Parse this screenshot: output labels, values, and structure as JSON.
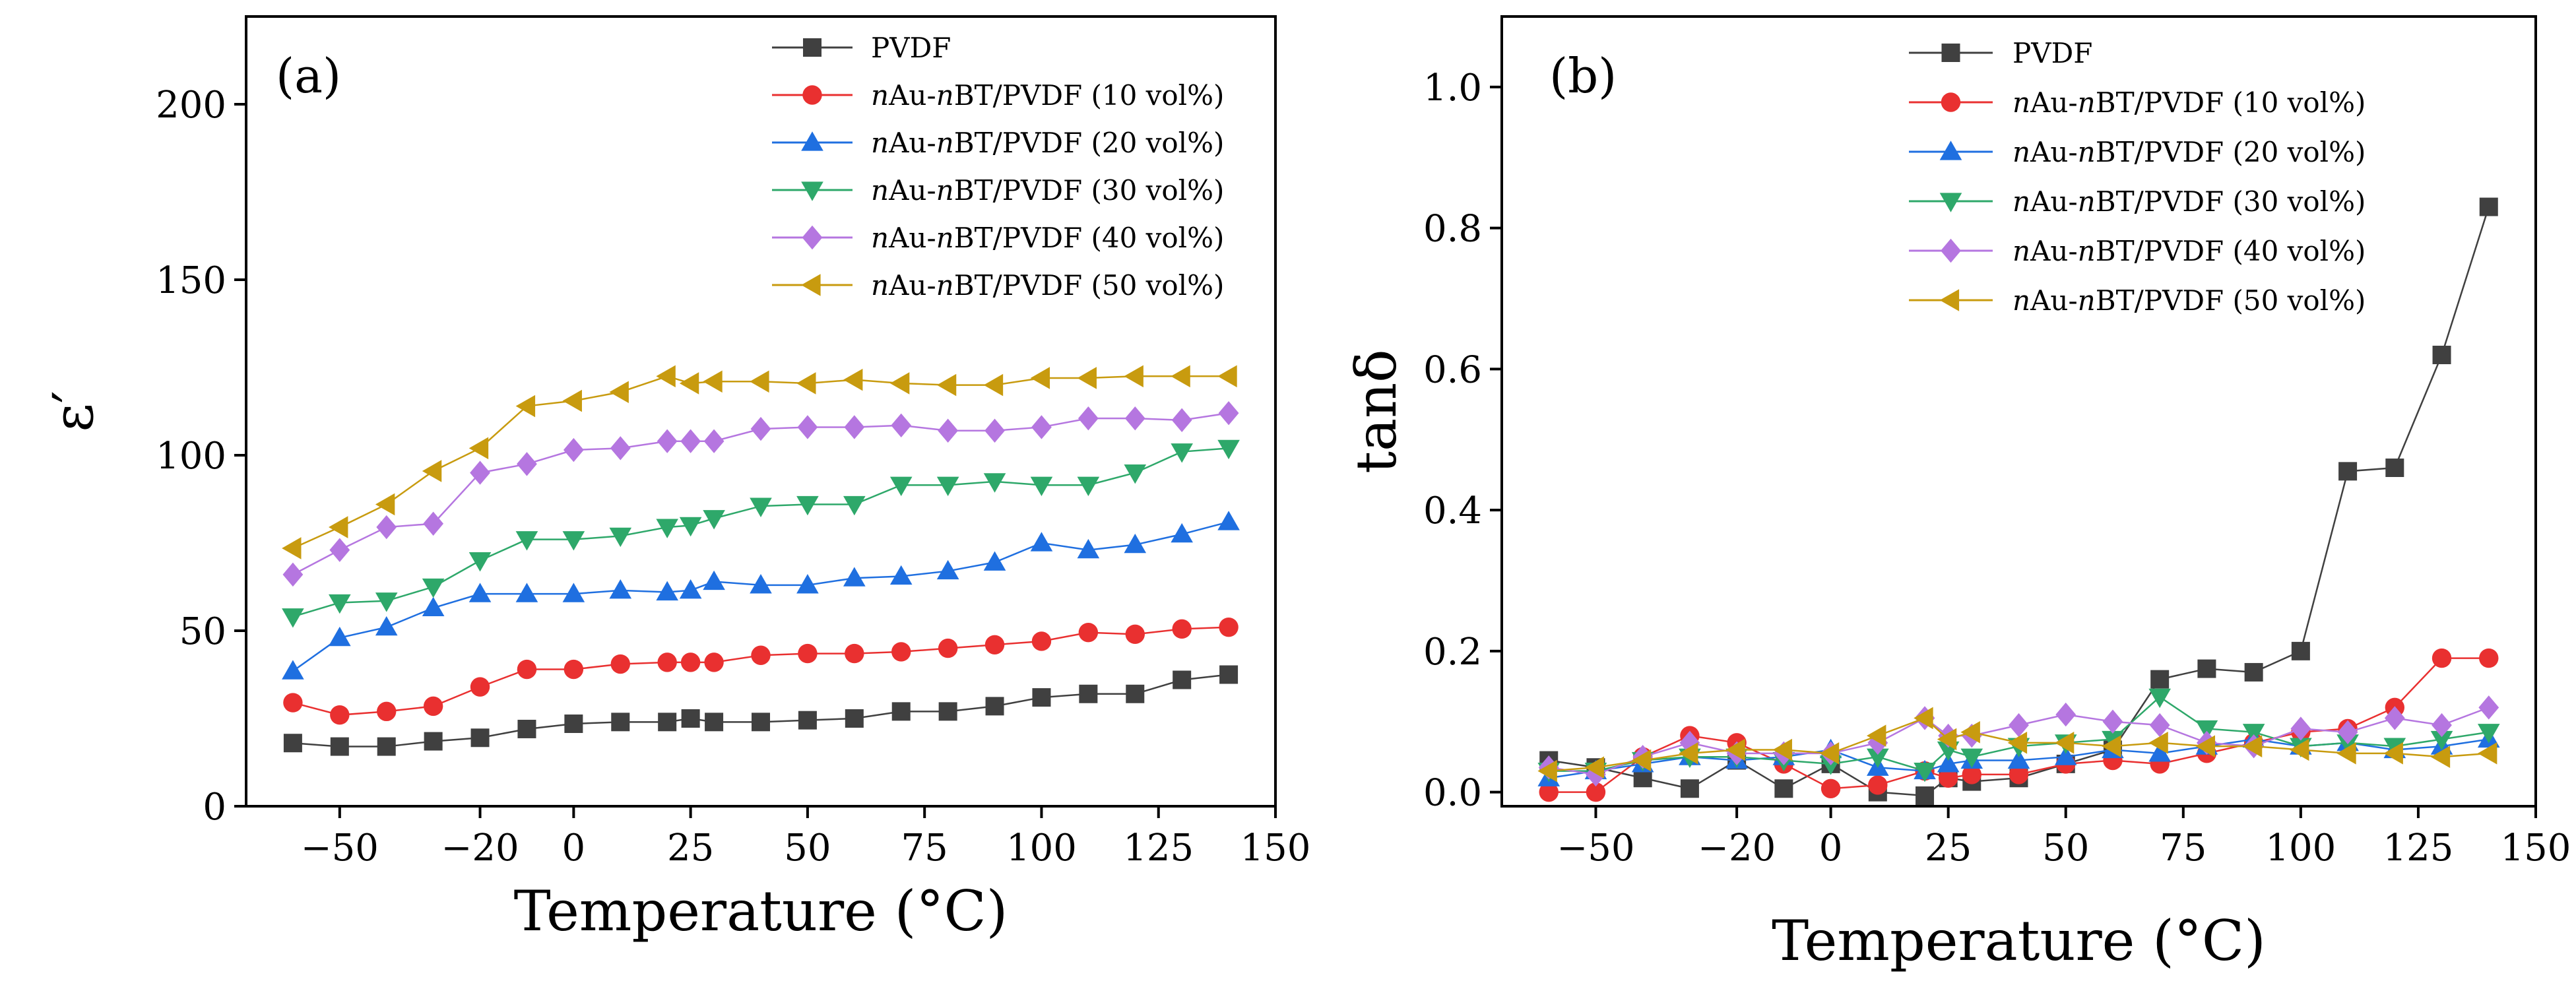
{
  "chart_data": [
    {
      "type": "line",
      "panel_label": "(a)",
      "xlabel": "Temperature (°C)",
      "ylabel": "ε′",
      "xlim": [
        -70,
        150
      ],
      "ylim": [
        0,
        225
      ],
      "xticks": [
        -50,
        -20,
        0,
        25,
        50,
        75,
        100,
        125,
        150
      ],
      "xtick_labels": [
        "−50",
        "−20",
        "0",
        "25",
        "50",
        "75",
        "100",
        "125",
        "150"
      ],
      "yticks": [
        0,
        50,
        100,
        150,
        200
      ],
      "legend_position": "top-right",
      "x": [
        -60,
        -50,
        -40,
        -30,
        -20,
        -10,
        0,
        10,
        20,
        25,
        30,
        40,
        50,
        60,
        70,
        80,
        90,
        100,
        110,
        120,
        130,
        140
      ],
      "series": [
        {
          "name": "PVDF",
          "prefix_italic": "",
          "color": "#404040",
          "marker": "square",
          "values": [
            18,
            17,
            17,
            18.5,
            19.5,
            22,
            23.5,
            24,
            24,
            25,
            24,
            24,
            24.5,
            25,
            27,
            27,
            28.5,
            31,
            32,
            32,
            36,
            37.5
          ]
        },
        {
          "name": "nAu-nBT/PVDF (10 vol%)",
          "color": "#e93030",
          "marker": "circle",
          "values": [
            29.5,
            26,
            27,
            28.5,
            34,
            39,
            39,
            40.5,
            41,
            41,
            41,
            43,
            43.5,
            43.5,
            44,
            45,
            46,
            47,
            49.5,
            49,
            50.5,
            51
          ]
        },
        {
          "name": "nAu-nBT/PVDF (20 vol%)",
          "color": "#1f6fe0",
          "marker": "triangle-up",
          "values": [
            38.5,
            48,
            51,
            56.5,
            60.5,
            60.5,
            60.5,
            61.5,
            61,
            61.5,
            64,
            63,
            63,
            65,
            65.5,
            67,
            69.5,
            75,
            73,
            74.5,
            77.5,
            81
          ]
        },
        {
          "name": "nAu-nBT/PVDF (30 vol%)",
          "color": "#2ea86a",
          "marker": "triangle-down",
          "values": [
            54,
            58,
            58.5,
            62.5,
            70,
            76,
            76,
            77,
            79.5,
            80,
            82,
            85.5,
            86,
            86,
            91.5,
            91.5,
            92.5,
            91.5,
            91.5,
            95,
            101,
            102
          ]
        },
        {
          "name": "nAu-nBT/PVDF (40 vol%)",
          "color": "#b576e0",
          "marker": "diamond",
          "values": [
            66,
            73,
            79.5,
            80.5,
            95,
            97.5,
            101.5,
            102,
            104,
            104,
            104,
            107.5,
            108,
            108,
            108.5,
            107,
            107,
            108,
            110.5,
            110.5,
            110,
            112
          ]
        },
        {
          "name": "nAu-nBT/PVDF (50 vol%)",
          "color": "#c89b0f",
          "marker": "triangle-left",
          "values": [
            73.5,
            79.5,
            86,
            95.5,
            102,
            114,
            115.5,
            118,
            122.5,
            120.5,
            121,
            121,
            120.5,
            121.5,
            120.5,
            120,
            120,
            122,
            122,
            122.5,
            122.5,
            122.5
          ]
        }
      ]
    },
    {
      "type": "line",
      "panel_label": "(b)",
      "xlabel": "Temperature (°C)",
      "ylabel": "tanδ",
      "xlim": [
        -70,
        150
      ],
      "ylim": [
        -0.02,
        1.1
      ],
      "xticks": [
        -50,
        -20,
        0,
        25,
        50,
        75,
        100,
        125,
        150
      ],
      "xtick_labels": [
        "−50",
        "−20",
        "0",
        "25",
        "50",
        "75",
        "100",
        "125",
        "150"
      ],
      "yticks": [
        0.0,
        0.2,
        0.4,
        0.6,
        0.8,
        1.0
      ],
      "ytick_labels": [
        "0.0",
        "0.2",
        "0.4",
        "0.6",
        "0.8",
        "1.0"
      ],
      "legend_position": "top-right",
      "x": [
        -60,
        -50,
        -40,
        -30,
        -20,
        -10,
        0,
        10,
        20,
        25,
        30,
        40,
        50,
        60,
        70,
        80,
        90,
        100,
        110,
        120,
        130,
        140
      ],
      "series": [
        {
          "name": "PVDF",
          "color": "#404040",
          "marker": "square",
          "values": [
            0.045,
            0.035,
            0.02,
            0.005,
            0.045,
            0.005,
            0.04,
            0.0,
            -0.005,
            0.02,
            0.015,
            0.02,
            0.04,
            0.06,
            0.16,
            0.175,
            0.17,
            0.2,
            0.455,
            0.46,
            0.62,
            0.83
          ]
        },
        {
          "name": "nAu-nBT/PVDF (10 vol%)",
          "color": "#e93030",
          "marker": "circle",
          "values": [
            0.0,
            0.0,
            0.05,
            0.08,
            0.07,
            0.04,
            0.005,
            0.01,
            0.03,
            0.02,
            0.025,
            0.025,
            0.04,
            0.045,
            0.04,
            0.055,
            0.07,
            0.085,
            0.09,
            0.12,
            0.19,
            0.19
          ]
        },
        {
          "name": "nAu-nBT/PVDF (20 vol%)",
          "color": "#1f6fe0",
          "marker": "triangle-up",
          "values": [
            0.02,
            0.03,
            0.04,
            0.05,
            0.045,
            0.05,
            0.06,
            0.035,
            0.03,
            0.04,
            0.045,
            0.045,
            0.05,
            0.06,
            0.055,
            0.065,
            0.075,
            0.065,
            0.07,
            0.06,
            0.065,
            0.075
          ]
        },
        {
          "name": "nAu-nBT/PVDF (30 vol%)",
          "color": "#2ea86a",
          "marker": "triangle-down",
          "values": [
            0.03,
            0.03,
            0.045,
            0.05,
            0.05,
            0.045,
            0.04,
            0.05,
            0.03,
            0.06,
            0.05,
            0.065,
            0.07,
            0.075,
            0.135,
            0.09,
            0.085,
            0.065,
            0.07,
            0.065,
            0.075,
            0.085
          ]
        },
        {
          "name": "nAu-nBT/PVDF (40 vol%)",
          "color": "#b576e0",
          "marker": "diamond",
          "values": [
            0.035,
            0.025,
            0.05,
            0.07,
            0.055,
            0.055,
            0.055,
            0.07,
            0.105,
            0.08,
            0.08,
            0.095,
            0.11,
            0.1,
            0.095,
            0.07,
            0.065,
            0.09,
            0.085,
            0.105,
            0.095,
            0.12
          ]
        },
        {
          "name": "nAu-nBT/PVDF (50 vol%)",
          "color": "#c89b0f",
          "marker": "triangle-left",
          "values": [
            0.03,
            0.035,
            0.045,
            0.055,
            0.06,
            0.06,
            0.055,
            0.08,
            0.105,
            0.075,
            0.085,
            0.07,
            0.07,
            0.065,
            0.07,
            0.065,
            0.065,
            0.06,
            0.055,
            0.055,
            0.05,
            0.055
          ]
        }
      ]
    }
  ]
}
